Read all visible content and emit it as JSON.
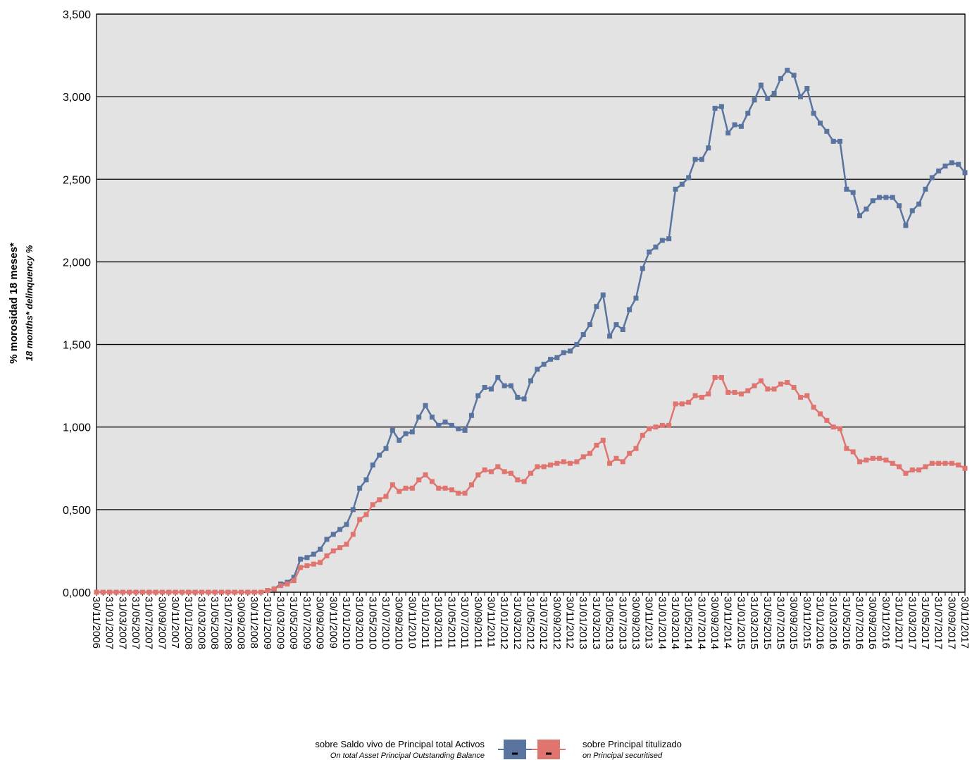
{
  "chart_data": {
    "type": "line",
    "y_label": "% morosidad 18 meses*",
    "y_label_en": "18 months* delinquency %",
    "categories": [
      "30/11/2006",
      null,
      "31/01/2007",
      null,
      "31/03/2007",
      null,
      "31/05/2007",
      null,
      "31/07/2007",
      null,
      "30/09/2007",
      null,
      "30/11/2007",
      null,
      "31/01/2008",
      null,
      "31/03/2008",
      null,
      "31/05/2008",
      null,
      "31/07/2008",
      null,
      "30/09/2008",
      null,
      "30/11/2008",
      null,
      "31/01/2009",
      null,
      "31/03/2009",
      null,
      "31/05/2009",
      null,
      "31/07/2009",
      null,
      "30/09/2009",
      null,
      "30/11/2009",
      null,
      "31/01/2010",
      null,
      "31/03/2010",
      null,
      "31/05/2010",
      null,
      "31/07/2010",
      null,
      "30/09/2010",
      null,
      "30/11/2010",
      null,
      "31/01/2011",
      null,
      "31/03/2011",
      null,
      "31/05/2011",
      null,
      "31/07/2011",
      null,
      "30/09/2011",
      null,
      "30/11/2011",
      null,
      "31/01/2012",
      null,
      "31/03/2012",
      null,
      "31/05/2012",
      null,
      "31/07/2012",
      null,
      "30/09/2012",
      null,
      "30/11/2012",
      null,
      "31/01/2013",
      null,
      "31/03/2013",
      null,
      "31/05/2013",
      null,
      "31/07/2013",
      null,
      "30/09/2013",
      null,
      "30/11/2013",
      null,
      "31/01/2014",
      null,
      "31/03/2014",
      null,
      "31/05/2014",
      null,
      "31/07/2014",
      null,
      "30/09/2014",
      null,
      "30/11/2014",
      null,
      "31/01/2015",
      null,
      "31/03/2015",
      null,
      "31/05/2015",
      null,
      "31/07/2015",
      null,
      "30/09/2015",
      null,
      "30/11/2015",
      null,
      "31/01/2016",
      null,
      "31/03/2016",
      null,
      "31/05/2016",
      null,
      "31/07/2016",
      null,
      "30/09/2016",
      null,
      "30/11/2016",
      null,
      "31/01/2017",
      null,
      "31/03/2017",
      null,
      "31/05/2017",
      null,
      "31/07/2017",
      null,
      "30/09/2017",
      null,
      "30/11/2017"
    ],
    "series": [
      {
        "name": "sobre Saldo vivo de Principal total Activos",
        "name_en": "On total Asset Principal Outstanding Balance",
        "color": "#5a74a0",
        "values": [
          0,
          0,
          0,
          0,
          0,
          0,
          0,
          0,
          0,
          0,
          0,
          0,
          0,
          0,
          0,
          0,
          0,
          0,
          0,
          0,
          0,
          0,
          0,
          0,
          0,
          0,
          0.01,
          0.02,
          0.05,
          0.06,
          0.09,
          0.2,
          0.21,
          0.23,
          0.26,
          0.32,
          0.35,
          0.38,
          0.41,
          0.5,
          0.63,
          0.68,
          0.77,
          0.83,
          0.87,
          0.98,
          0.92,
          0.96,
          0.97,
          1.06,
          1.13,
          1.06,
          1.01,
          1.03,
          1.01,
          0.99,
          0.98,
          1.07,
          1.19,
          1.24,
          1.23,
          1.3,
          1.25,
          1.25,
          1.18,
          1.17,
          1.28,
          1.35,
          1.38,
          1.41,
          1.42,
          1.45,
          1.46,
          1.5,
          1.56,
          1.62,
          1.73,
          1.8,
          1.55,
          1.62,
          1.59,
          1.71,
          1.78,
          1.96,
          2.06,
          2.09,
          2.13,
          2.14,
          2.44,
          2.47,
          2.51,
          2.62,
          2.62,
          2.69,
          2.93,
          2.94,
          2.78,
          2.83,
          2.82,
          2.9,
          2.98,
          3.07,
          2.99,
          3.02,
          3.11,
          3.16,
          3.13,
          3.0,
          3.05,
          2.9,
          2.84,
          2.79,
          2.73,
          2.73,
          2.44,
          2.42,
          2.28,
          2.32,
          2.37,
          2.39,
          2.39,
          2.39,
          2.34,
          2.22,
          2.31,
          2.35,
          2.44,
          2.51,
          2.55,
          2.58,
          2.6,
          2.59,
          2.54
        ]
      },
      {
        "name": "sobre Principal titulizado",
        "name_en": "on Principal securitised",
        "color": "#e07570",
        "values": [
          0,
          0,
          0,
          0,
          0,
          0,
          0,
          0,
          0,
          0,
          0,
          0,
          0,
          0,
          0,
          0,
          0,
          0,
          0,
          0,
          0,
          0,
          0,
          0,
          0,
          0,
          0.01,
          0.02,
          0.04,
          0.05,
          0.07,
          0.15,
          0.16,
          0.17,
          0.18,
          0.22,
          0.25,
          0.27,
          0.29,
          0.35,
          0.44,
          0.47,
          0.53,
          0.56,
          0.58,
          0.65,
          0.61,
          0.63,
          0.63,
          0.68,
          0.71,
          0.67,
          0.63,
          0.63,
          0.62,
          0.6,
          0.6,
          0.65,
          0.71,
          0.74,
          0.73,
          0.76,
          0.73,
          0.72,
          0.68,
          0.67,
          0.72,
          0.76,
          0.76,
          0.77,
          0.78,
          0.79,
          0.78,
          0.79,
          0.82,
          0.84,
          0.89,
          0.92,
          0.78,
          0.81,
          0.79,
          0.84,
          0.87,
          0.95,
          0.99,
          1.0,
          1.01,
          1.01,
          1.14,
          1.14,
          1.15,
          1.19,
          1.18,
          1.2,
          1.3,
          1.3,
          1.21,
          1.21,
          1.2,
          1.22,
          1.25,
          1.28,
          1.23,
          1.23,
          1.26,
          1.27,
          1.24,
          1.18,
          1.19,
          1.12,
          1.08,
          1.04,
          1.0,
          0.99,
          0.87,
          0.85,
          0.79,
          0.8,
          0.81,
          0.81,
          0.8,
          0.78,
          0.76,
          0.72,
          0.74,
          0.74,
          0.76,
          0.78,
          0.78,
          0.78,
          0.78,
          0.77,
          0.75
        ]
      }
    ],
    "ylim": [
      0,
      3.5
    ],
    "yticks": [
      {
        "value": 0,
        "label": "0,000"
      },
      {
        "value": 0.5,
        "label": "0,500"
      },
      {
        "value": 1,
        "label": "1,000"
      },
      {
        "value": 1.5,
        "label": "1,500"
      },
      {
        "value": 2,
        "label": "2,000"
      },
      {
        "value": 2.5,
        "label": "2,500"
      },
      {
        "value": 3,
        "label": "3,000"
      },
      {
        "value": 3.5,
        "label": "3,500"
      }
    ],
    "grid": true
  }
}
